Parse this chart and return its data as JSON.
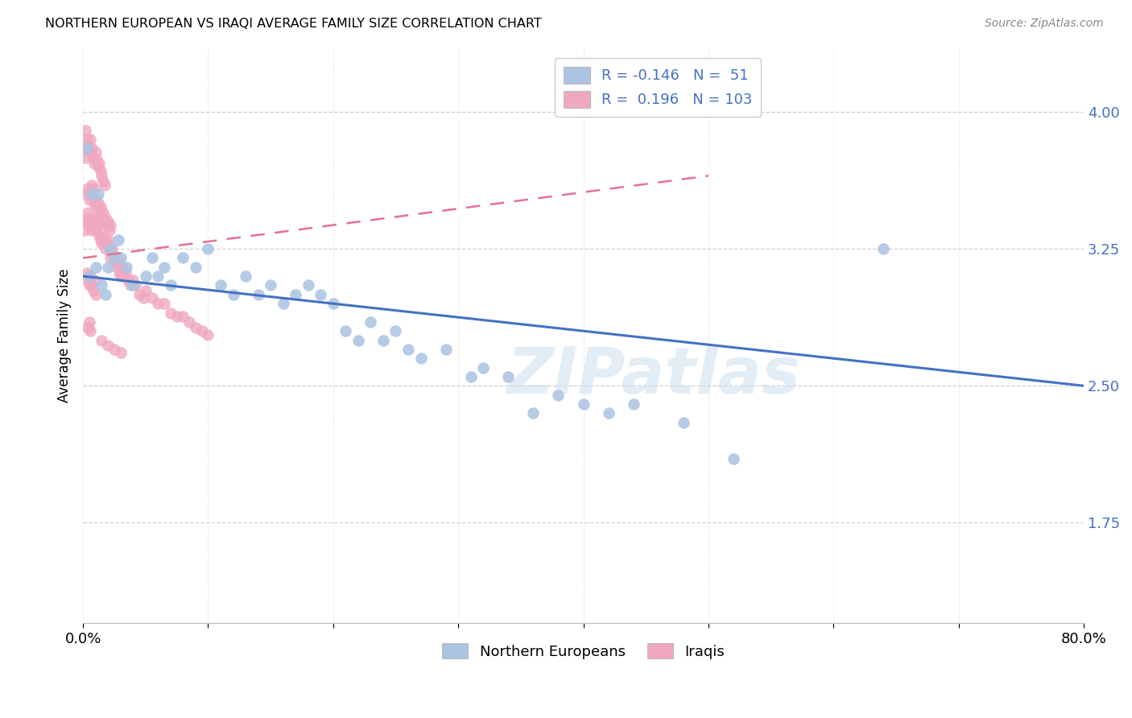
{
  "title": "NORTHERN EUROPEAN VS IRAQI AVERAGE FAMILY SIZE CORRELATION CHART",
  "source": "Source: ZipAtlas.com",
  "ylabel": "Average Family Size",
  "xlim": [
    0.0,
    0.8
  ],
  "ylim": [
    1.2,
    4.35
  ],
  "yticks": [
    1.75,
    2.5,
    3.25,
    4.0
  ],
  "xticks": [
    0.0,
    0.1,
    0.2,
    0.3,
    0.4,
    0.5,
    0.6,
    0.7,
    0.8
  ],
  "legend_labels": [
    "Northern Europeans",
    "Iraqis"
  ],
  "legend_r": [
    -0.146,
    0.196
  ],
  "legend_n": [
    51,
    103
  ],
  "blue_color": "#aac4e2",
  "pink_color": "#f0a8c0",
  "blue_line_color": "#4472C4",
  "pink_line_color": "#E87090",
  "watermark": "ZIPatlas",
  "blue_line_x0": 0.0,
  "blue_line_y0": 3.1,
  "blue_line_x1": 0.8,
  "blue_line_y1": 2.5,
  "pink_line_x0": 0.0,
  "pink_line_y0": 3.2,
  "pink_line_x1": 0.5,
  "pink_line_y1": 3.65,
  "blue_x": [
    0.003,
    0.005,
    0.007,
    0.01,
    0.012,
    0.015,
    0.018,
    0.02,
    0.022,
    0.025,
    0.028,
    0.03,
    0.035,
    0.04,
    0.05,
    0.055,
    0.06,
    0.065,
    0.07,
    0.08,
    0.09,
    0.1,
    0.11,
    0.12,
    0.13,
    0.14,
    0.15,
    0.16,
    0.17,
    0.18,
    0.19,
    0.2,
    0.21,
    0.22,
    0.23,
    0.24,
    0.25,
    0.26,
    0.27,
    0.29,
    0.31,
    0.32,
    0.34,
    0.36,
    0.38,
    0.4,
    0.42,
    0.44,
    0.48,
    0.52,
    0.64
  ],
  "blue_y": [
    3.8,
    3.1,
    3.55,
    3.15,
    3.55,
    3.05,
    3.0,
    3.15,
    3.25,
    3.2,
    3.3,
    3.2,
    3.15,
    3.05,
    3.1,
    3.2,
    3.1,
    3.15,
    3.05,
    3.2,
    3.15,
    3.25,
    3.05,
    3.0,
    3.1,
    3.0,
    3.05,
    2.95,
    3.0,
    3.05,
    3.0,
    2.95,
    2.8,
    2.75,
    2.85,
    2.75,
    2.8,
    2.7,
    2.65,
    2.7,
    2.55,
    2.6,
    2.55,
    2.35,
    2.45,
    2.4,
    2.35,
    2.4,
    2.3,
    2.1,
    3.25
  ],
  "pink_x": [
    0.001,
    0.002,
    0.003,
    0.004,
    0.005,
    0.006,
    0.007,
    0.008,
    0.009,
    0.01,
    0.011,
    0.012,
    0.013,
    0.014,
    0.015,
    0.016,
    0.017,
    0.018,
    0.019,
    0.02,
    0.021,
    0.022,
    0.023,
    0.024,
    0.025,
    0.026,
    0.027,
    0.028,
    0.029,
    0.03,
    0.031,
    0.032,
    0.034,
    0.036,
    0.038,
    0.04,
    0.042,
    0.045,
    0.048,
    0.05,
    0.055,
    0.06,
    0.065,
    0.07,
    0.075,
    0.08,
    0.085,
    0.09,
    0.095,
    0.1,
    0.003,
    0.004,
    0.005,
    0.006,
    0.007,
    0.008,
    0.009,
    0.01,
    0.011,
    0.012,
    0.013,
    0.014,
    0.015,
    0.016,
    0.017,
    0.018,
    0.019,
    0.02,
    0.021,
    0.022,
    0.002,
    0.003,
    0.004,
    0.005,
    0.006,
    0.007,
    0.008,
    0.009,
    0.01,
    0.011,
    0.012,
    0.013,
    0.014,
    0.015,
    0.016,
    0.017,
    0.003,
    0.004,
    0.005,
    0.006,
    0.007,
    0.008,
    0.009,
    0.01,
    0.002,
    0.003,
    0.004,
    0.005,
    0.006,
    0.015,
    0.02,
    0.025,
    0.03
  ],
  "pink_y": [
    3.35,
    3.4,
    3.42,
    3.45,
    3.38,
    3.4,
    3.35,
    3.42,
    3.38,
    3.4,
    3.35,
    3.38,
    3.32,
    3.3,
    3.28,
    3.32,
    3.3,
    3.25,
    3.28,
    3.3,
    3.25,
    3.2,
    3.25,
    3.22,
    3.18,
    3.2,
    3.15,
    3.18,
    3.12,
    3.1,
    3.15,
    3.1,
    3.12,
    3.08,
    3.05,
    3.08,
    3.05,
    3.0,
    2.98,
    3.02,
    2.98,
    2.95,
    2.95,
    2.9,
    2.88,
    2.88,
    2.85,
    2.82,
    2.8,
    2.78,
    3.55,
    3.58,
    3.52,
    3.55,
    3.6,
    3.58,
    3.5,
    3.52,
    3.48,
    3.5,
    3.45,
    3.48,
    3.42,
    3.45,
    3.4,
    3.42,
    3.38,
    3.4,
    3.35,
    3.38,
    3.75,
    3.8,
    3.82,
    3.78,
    3.85,
    3.8,
    3.75,
    3.72,
    3.78,
    3.74,
    3.7,
    3.72,
    3.68,
    3.65,
    3.62,
    3.6,
    3.12,
    3.08,
    3.05,
    3.1,
    3.05,
    3.02,
    3.08,
    3.0,
    3.9,
    3.85,
    2.82,
    2.85,
    2.8,
    2.75,
    2.72,
    2.7,
    2.68
  ]
}
